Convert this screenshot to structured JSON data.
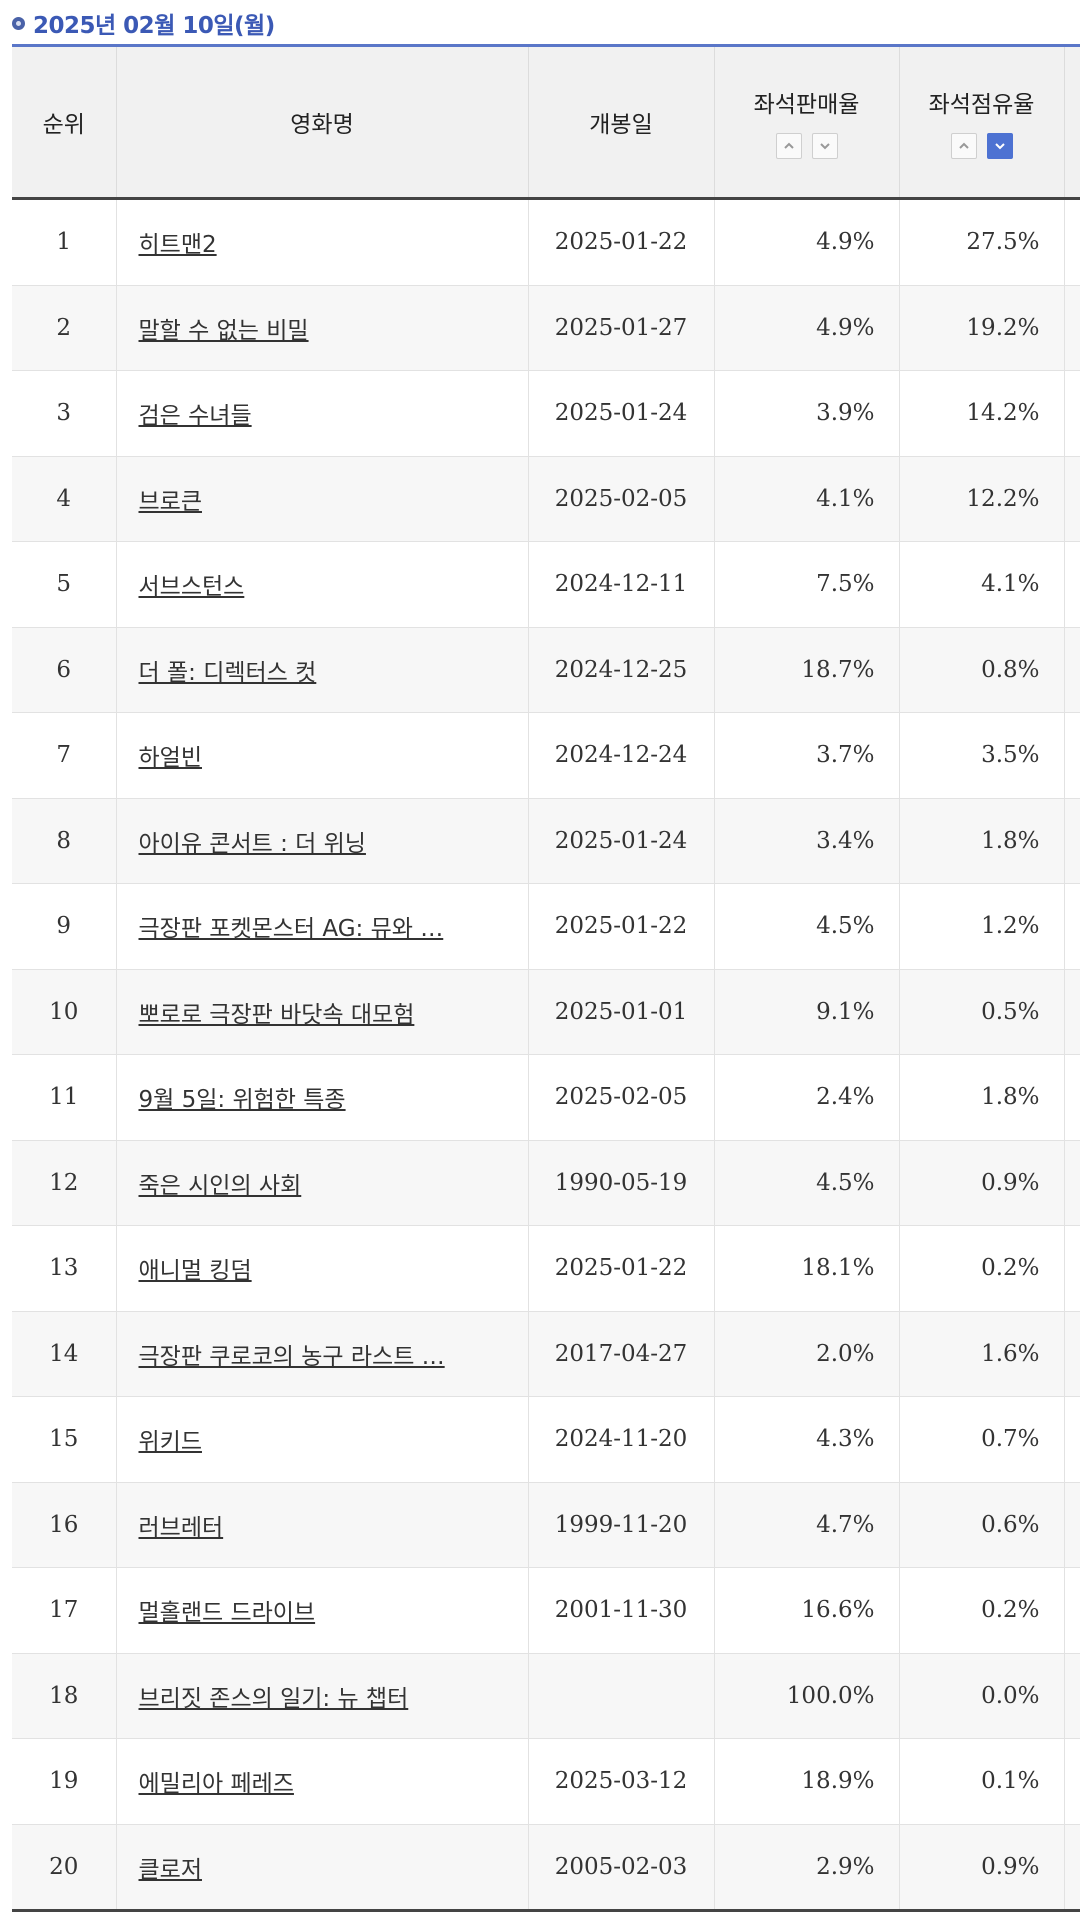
{
  "header": {
    "date": "2025년 02월 10일(월)"
  },
  "columns": {
    "rank": "순위",
    "title": "영화명",
    "open_date": "개봉일",
    "sales_rate": "좌석판매율",
    "occupancy_rate": "좌석점유율"
  },
  "colors": {
    "accent": "#3b59b5",
    "sort_active": "#4d72d2"
  },
  "icons": {
    "sort_up": "chevron-up-icon",
    "sort_down": "chevron-down-icon"
  },
  "rows": [
    {
      "rank": "1",
      "title": "히트맨2",
      "open_date": "2025-01-22",
      "sales_rate": "4.9%",
      "occupancy_rate": "27.5%"
    },
    {
      "rank": "2",
      "title": "말할 수 없는 비밀",
      "open_date": "2025-01-27",
      "sales_rate": "4.9%",
      "occupancy_rate": "19.2%"
    },
    {
      "rank": "3",
      "title": "검은 수녀들",
      "open_date": "2025-01-24",
      "sales_rate": "3.9%",
      "occupancy_rate": "14.2%"
    },
    {
      "rank": "4",
      "title": "브로큰",
      "open_date": "2025-02-05",
      "sales_rate": "4.1%",
      "occupancy_rate": "12.2%"
    },
    {
      "rank": "5",
      "title": "서브스턴스",
      "open_date": "2024-12-11",
      "sales_rate": "7.5%",
      "occupancy_rate": "4.1%"
    },
    {
      "rank": "6",
      "title": "더 폴: 디렉터스 컷",
      "open_date": "2024-12-25",
      "sales_rate": "18.7%",
      "occupancy_rate": "0.8%"
    },
    {
      "rank": "7",
      "title": "하얼빈",
      "open_date": "2024-12-24",
      "sales_rate": "3.7%",
      "occupancy_rate": "3.5%"
    },
    {
      "rank": "8",
      "title": "아이유 콘서트 : 더 위닝",
      "open_date": "2025-01-24",
      "sales_rate": "3.4%",
      "occupancy_rate": "1.8%"
    },
    {
      "rank": "9",
      "title": "극장판 포켓몬스터 AG: 뮤와 …",
      "open_date": "2025-01-22",
      "sales_rate": "4.5%",
      "occupancy_rate": "1.2%"
    },
    {
      "rank": "10",
      "title": "뽀로로 극장판 바닷속 대모험",
      "open_date": "2025-01-01",
      "sales_rate": "9.1%",
      "occupancy_rate": "0.5%"
    },
    {
      "rank": "11",
      "title": "9월 5일: 위험한 특종",
      "open_date": "2025-02-05",
      "sales_rate": "2.4%",
      "occupancy_rate": "1.8%"
    },
    {
      "rank": "12",
      "title": "죽은 시인의 사회",
      "open_date": "1990-05-19",
      "sales_rate": "4.5%",
      "occupancy_rate": "0.9%"
    },
    {
      "rank": "13",
      "title": "애니멀 킹덤",
      "open_date": "2025-01-22",
      "sales_rate": "18.1%",
      "occupancy_rate": "0.2%"
    },
    {
      "rank": "14",
      "title": "극장판 쿠로코의 농구 라스트 …",
      "open_date": "2017-04-27",
      "sales_rate": "2.0%",
      "occupancy_rate": "1.6%"
    },
    {
      "rank": "15",
      "title": "위키드",
      "open_date": "2024-11-20",
      "sales_rate": "4.3%",
      "occupancy_rate": "0.7%"
    },
    {
      "rank": "16",
      "title": "러브레터",
      "open_date": "1999-11-20",
      "sales_rate": "4.7%",
      "occupancy_rate": "0.6%"
    },
    {
      "rank": "17",
      "title": "멀홀랜드 드라이브",
      "open_date": "2001-11-30",
      "sales_rate": "16.6%",
      "occupancy_rate": "0.2%"
    },
    {
      "rank": "18",
      "title": "브리짓 존스의 일기: 뉴 챕터",
      "open_date": "",
      "sales_rate": "100.0%",
      "occupancy_rate": "0.0%"
    },
    {
      "rank": "19",
      "title": "에밀리아 페레즈",
      "open_date": "2025-03-12",
      "sales_rate": "18.9%",
      "occupancy_rate": "0.1%"
    },
    {
      "rank": "20",
      "title": "클로저",
      "open_date": "2005-02-03",
      "sales_rate": "2.9%",
      "occupancy_rate": "0.9%"
    }
  ]
}
